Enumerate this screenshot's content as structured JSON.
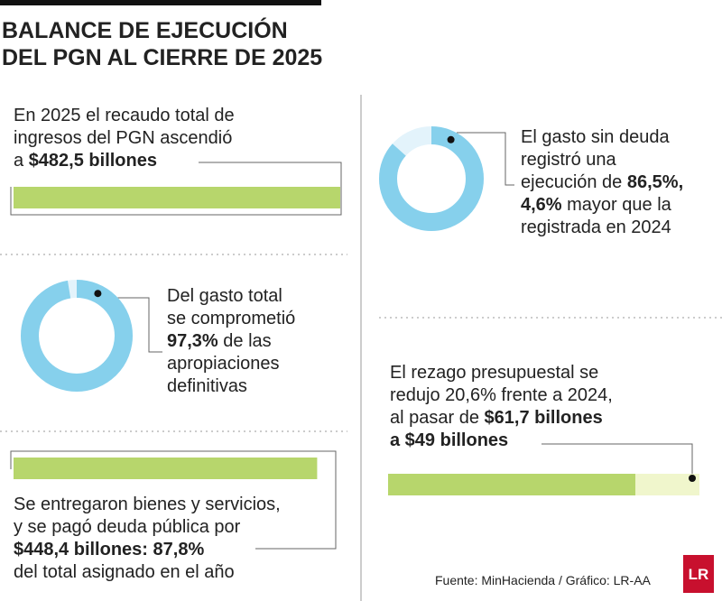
{
  "header": {
    "title": [
      "BALANCE DE EJECUCIÓN",
      "DEL PGN AL CIERRE DE 2025"
    ]
  },
  "panels": [
    {
      "type": "bar",
      "value": 482.5,
      "lines": [
        [
          {
            "text": "En 2025 el recaudo total de"
          }
        ],
        [
          {
            "text": "ingresos del PGN ascendió"
          }
        ],
        [
          {
            "text": "a "
          },
          {
            "text": "$482,5 billones",
            "bold": true
          }
        ]
      ]
    },
    {
      "type": "donut",
      "percent": 97.3,
      "lines": [
        [
          {
            "text": "Del gasto total"
          }
        ],
        [
          {
            "text": "se comprometió"
          }
        ],
        [
          {
            "text": "97,3%",
            "bold": true
          },
          {
            "text": " de las"
          }
        ],
        [
          {
            "text": "apropiaciones"
          }
        ],
        [
          {
            "text": "definitivas"
          }
        ]
      ]
    },
    {
      "type": "bar",
      "value": 448.4,
      "lines": [
        [
          {
            "text": "Se entregaron bienes y servicios,"
          }
        ],
        [
          {
            "text": "y se pagó deuda pública por"
          }
        ],
        [
          {
            "text": "$448,4 billones: 87,8%",
            "bold": true
          }
        ],
        [
          {
            "text": "del total asignado en el año"
          }
        ]
      ]
    },
    {
      "type": "donut",
      "percent": 86.5,
      "lines": [
        [
          {
            "text": "El gasto sin deuda"
          }
        ],
        [
          {
            "text": "registró una"
          }
        ],
        [
          {
            "text": "ejecución de "
          },
          {
            "text": "86,5%,",
            "bold": true
          }
        ],
        [
          {
            "text": "4,6%",
            "bold": true
          },
          {
            "text": " mayor que la"
          }
        ],
        [
          {
            "text": "registrada en 2024"
          }
        ]
      ]
    },
    {
      "type": "range",
      "from": 61.7,
      "to": 49,
      "lines": [
        [
          {
            "text": "El rezago presupuestal se"
          }
        ],
        [
          {
            "text": "redujo 20,6% frente a 2024,"
          }
        ],
        [
          {
            "text": "al pasar de "
          },
          {
            "text": "$61,7 billones",
            "bold": true
          }
        ],
        [
          {
            "text": "a $49 billones",
            "bold": true
          }
        ]
      ]
    }
  ],
  "footer": {
    "source": "Fuente: MinHacienda / Gráfico: LR-AA",
    "logo": "LR"
  }
}
